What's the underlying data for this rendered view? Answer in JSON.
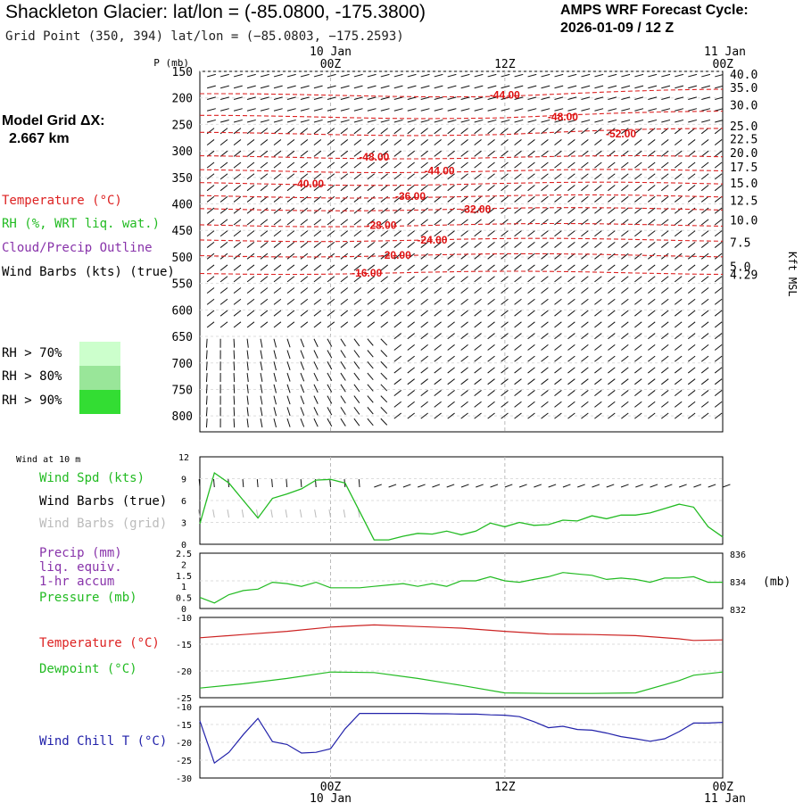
{
  "header": {
    "title": "Shackleton Glacier:  lat/lon = (-85.0800, -175.3800)",
    "subtitle": "Grid Point (350, 394) lat/lon = (−85.0803, −175.2593)",
    "cycle_label": "AMPS WRF Forecast Cycle:",
    "cycle_value": "2026-01-09 / 12  Z"
  },
  "model_grid": {
    "label": "Model Grid ΔX:",
    "value": "2.667 km"
  },
  "legend": {
    "temperature": "Temperature (°C)",
    "rh": "RH (%, WRT liq. wat.)",
    "cloud": "Cloud/Precip Outline",
    "barbs": "Wind Barbs (kts) (true)",
    "rh_levels": [
      "RH > 70%",
      "RH > 80%",
      "RH > 90%"
    ],
    "rh_colors": [
      "#ccffcc",
      "#99e699",
      "#33dd33"
    ]
  },
  "time_axis": {
    "top_labels": [
      {
        "time": "00Z",
        "date": "10 Jan"
      },
      {
        "time": "12Z",
        "date": ""
      },
      {
        "time": "00Z",
        "date": "11 Jan"
      }
    ],
    "bottom_labels": [
      {
        "time": "00Z",
        "date": "10 Jan"
      },
      {
        "time": "12Z",
        "date": ""
      },
      {
        "time": "00Z",
        "date": "11 Jan"
      }
    ]
  },
  "chart_data": [
    {
      "type": "line",
      "name": "cross-section",
      "ylabel": "P (mb)",
      "y2label": "Kft MSL",
      "x_hours": [
        -9,
        27
      ],
      "pressure_ticks": [
        150,
        200,
        250,
        300,
        350,
        400,
        450,
        500,
        550,
        600,
        650,
        700,
        750,
        800
      ],
      "kft_ticks": [
        {
          "p": 155,
          "label": "40.0"
        },
        {
          "p": 180,
          "label": "35.0"
        },
        {
          "p": 213,
          "label": "30.0"
        },
        {
          "p": 253,
          "label": "25.0"
        },
        {
          "p": 277,
          "label": "22.5"
        },
        {
          "p": 303,
          "label": "20.0"
        },
        {
          "p": 330,
          "label": "17.5"
        },
        {
          "p": 360,
          "label": "15.0"
        },
        {
          "p": 393,
          "label": "12.5"
        },
        {
          "p": 430,
          "label": "10.0"
        },
        {
          "p": 472,
          "label": "7.5"
        },
        {
          "p": 518,
          "label": "5.0"
        },
        {
          "p": 533,
          "label": "4.29"
        }
      ],
      "isotherm_labels": [
        {
          "value": "-44.00",
          "hour": 12
        },
        {
          "value": "-48.00",
          "hour": 16
        },
        {
          "value": "-52.00",
          "hour": 20
        },
        {
          "value": "-48.00",
          "hour": 3
        },
        {
          "value": "-44.00",
          "hour": 7.5
        },
        {
          "value": "-40.00",
          "hour": -1.5
        },
        {
          "value": "-36.00",
          "hour": 5.5
        },
        {
          "value": "-32.00",
          "hour": 10
        },
        {
          "value": "-28.00",
          "hour": 3.5
        },
        {
          "value": "-24.00",
          "hour": 7
        },
        {
          "value": "-20.00",
          "hour": 4.5
        },
        {
          "value": "-16.00",
          "hour": 2.5
        }
      ]
    },
    {
      "type": "line",
      "name": "wind-10m",
      "header": "Wind at 10 m",
      "legend": [
        "Wind Spd (kts)",
        "Wind Barbs (true)",
        "Wind Barbs (grid)"
      ],
      "ylim": [
        0,
        12
      ],
      "yticks": [
        0,
        3,
        6,
        9,
        12
      ],
      "x": [
        -9,
        -8,
        -7,
        -6,
        -5,
        -4,
        -3,
        -2,
        -1,
        0,
        1,
        2,
        3,
        4,
        5,
        6,
        7,
        8,
        9,
        10,
        11,
        12,
        13,
        14,
        15,
        16,
        17,
        18,
        19,
        20,
        21,
        22,
        23,
        24,
        25,
        26,
        27
      ],
      "values": [
        2.8,
        9.8,
        8.4,
        6.0,
        3.6,
        6.3,
        6.9,
        7.6,
        8.8,
        8.9,
        8.4,
        4.5,
        0.6,
        0.6,
        1.1,
        1.5,
        1.4,
        1.8,
        1.3,
        1.8,
        2.9,
        2.4,
        3.0,
        2.6,
        2.7,
        3.3,
        3.2,
        3.9,
        3.5,
        4.0,
        4.0,
        4.3,
        4.9,
        5.5,
        5.1,
        2.4,
        1.0
      ]
    },
    {
      "type": "line",
      "name": "precip-pressure",
      "legend": [
        "Precip (mm)",
        "liq. equiv.",
        "1-hr accum",
        "Pressure (mb)"
      ],
      "ylim": [
        0,
        2.5
      ],
      "yticks": [
        0,
        0.5,
        1.0,
        1.5,
        2.0,
        2.5
      ],
      "y2lim": [
        832,
        836
      ],
      "y2ticks": [
        832,
        834,
        836
      ],
      "y2label": "(mb)",
      "x": [
        -9,
        -8,
        -7,
        -6,
        -5,
        -4,
        -3,
        -2,
        -1,
        0,
        1,
        2,
        3,
        4,
        5,
        6,
        7,
        8,
        9,
        10,
        11,
        12,
        13,
        14,
        15,
        16,
        17,
        18,
        19,
        20,
        21,
        22,
        23,
        24,
        25,
        26,
        27
      ],
      "pressure": [
        832.8,
        832.4,
        833.0,
        833.3,
        833.4,
        833.9,
        833.8,
        833.6,
        833.9,
        833.5,
        833.5,
        833.5,
        833.6,
        833.7,
        833.8,
        833.6,
        833.8,
        833.6,
        834.0,
        834.0,
        834.3,
        834.0,
        833.9,
        834.1,
        834.3,
        834.6,
        834.5,
        834.4,
        834.1,
        834.2,
        834.1,
        833.9,
        834.2,
        834.2,
        834.3,
        833.9,
        833.9
      ]
    },
    {
      "type": "line",
      "name": "temperature-dewpoint",
      "legend": [
        "Temperature (°C)",
        "Dewpoint (°C)"
      ],
      "ylim": [
        -25,
        -10
      ],
      "yticks": [
        -10,
        -15,
        -20,
        -25
      ],
      "x": [
        -9,
        -6,
        -3,
        0,
        3,
        6,
        9,
        12,
        15,
        18,
        21,
        24,
        25,
        27
      ],
      "temperature": [
        -13.8,
        -13.2,
        -12.6,
        -11.8,
        -11.4,
        -11.7,
        -12.0,
        -12.6,
        -13.1,
        -13.2,
        -13.4,
        -14.0,
        -14.3,
        -14.2
      ],
      "dewpoint": [
        -23.2,
        -22.4,
        -21.4,
        -20.2,
        -20.3,
        -21.4,
        -22.7,
        -24.1,
        -24.2,
        -24.2,
        -24.1,
        -21.8,
        -20.8,
        -20.2
      ]
    },
    {
      "type": "line",
      "name": "wind-chill",
      "legend": [
        "Wind Chill T (°C)"
      ],
      "ylim": [
        -30,
        -10
      ],
      "yticks": [
        -10,
        -15,
        -20,
        -25,
        -30
      ],
      "x": [
        -9,
        -8,
        -7,
        -6,
        -5,
        -4,
        -3,
        -2,
        -1,
        0,
        1,
        2,
        3,
        4,
        5,
        6,
        7,
        8,
        9,
        10,
        11,
        12,
        13,
        14,
        15,
        16,
        17,
        18,
        19,
        20,
        21,
        22,
        23,
        24,
        25,
        26,
        27
      ],
      "values": [
        -14.0,
        -25.8,
        -22.8,
        -17.8,
        -13.3,
        -19.8,
        -20.6,
        -23.0,
        -22.8,
        -21.8,
        -16.2,
        -11.9,
        -11.9,
        -11.9,
        -11.9,
        -11.9,
        -12.0,
        -12.0,
        -12.1,
        -12.1,
        -12.3,
        -12.4,
        -12.8,
        -14.2,
        -15.9,
        -15.5,
        -16.4,
        -16.6,
        -17.4,
        -18.4,
        -19.0,
        -19.7,
        -19.0,
        -17.0,
        -14.6,
        -14.6,
        -14.4
      ]
    }
  ]
}
